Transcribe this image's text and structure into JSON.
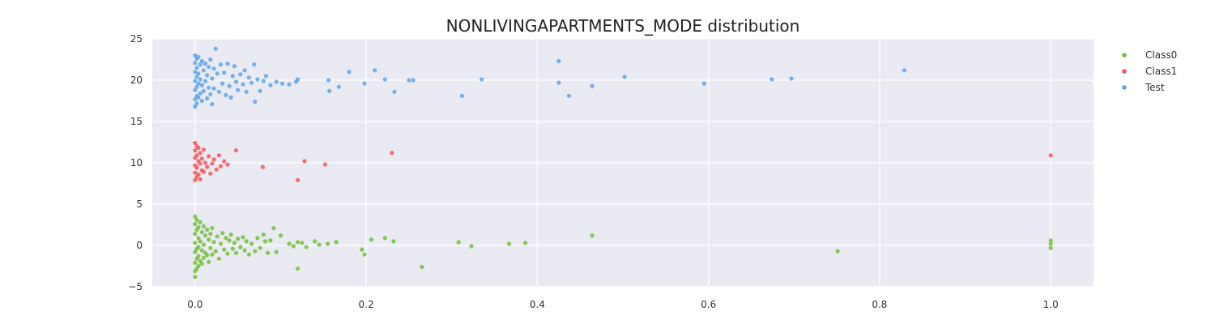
{
  "chart_data": {
    "type": "scatter",
    "title": "NONLIVINGAPARTMENTS_MODE distribution",
    "xlabel": "",
    "ylabel": "",
    "xlim": [
      -0.05,
      1.05
    ],
    "ylim": [
      -5,
      25
    ],
    "x_ticks": [
      0.0,
      0.2,
      0.4,
      0.6,
      0.8,
      1.0
    ],
    "x_tick_labels": [
      "0.0",
      "0.2",
      "0.4",
      "0.6",
      "0.8",
      "1.0"
    ],
    "y_ticks": [
      -5,
      0,
      5,
      10,
      15,
      20,
      25
    ],
    "y_tick_labels": [
      "−5",
      "0",
      "5",
      "10",
      "15",
      "20",
      "25"
    ],
    "grid": true,
    "legend_position": "top-right",
    "background_color": "#eaeaf2",
    "series": [
      {
        "name": "Class0",
        "color": "#73bf3c",
        "points": [
          [
            0.0,
            3.5
          ],
          [
            0.0,
            2.6
          ],
          [
            0.0,
            1.4
          ],
          [
            0.0,
            0.3
          ],
          [
            0.0,
            -0.8
          ],
          [
            0.0,
            -2.1
          ],
          [
            0.0,
            -3.1
          ],
          [
            0.0,
            -3.8
          ],
          [
            0.002,
            3.1
          ],
          [
            0.002,
            1.9
          ],
          [
            0.002,
            -0.4
          ],
          [
            0.002,
            -1.6
          ],
          [
            0.002,
            -2.8
          ],
          [
            0.004,
            2.2
          ],
          [
            0.004,
            0.9
          ],
          [
            0.004,
            -0.2
          ],
          [
            0.004,
            -1.3
          ],
          [
            0.004,
            -2.5
          ],
          [
            0.006,
            2.8
          ],
          [
            0.006,
            0.5
          ],
          [
            0.006,
            -1.9
          ],
          [
            0.008,
            1.6
          ],
          [
            0.008,
            -0.6
          ],
          [
            0.008,
            -2.2
          ],
          [
            0.01,
            2.3
          ],
          [
            0.01,
            0.1
          ],
          [
            0.01,
            -1.5
          ],
          [
            0.012,
            1.2
          ],
          [
            0.012,
            -0.9
          ],
          [
            0.014,
            1.9
          ],
          [
            0.014,
            -1.2
          ],
          [
            0.016,
            0.7
          ],
          [
            0.016,
            -2.0
          ],
          [
            0.018,
            1.4
          ],
          [
            0.018,
            -0.3
          ],
          [
            0.02,
            2.1
          ],
          [
            0.02,
            -1.1
          ],
          [
            0.022,
            0.4
          ],
          [
            0.024,
            -0.7
          ],
          [
            0.026,
            1.1
          ],
          [
            0.028,
            -1.6
          ],
          [
            0.03,
            0.2
          ],
          [
            0.032,
            1.5
          ],
          [
            0.034,
            -0.5
          ],
          [
            0.036,
            0.9
          ],
          [
            0.038,
            -1.0
          ],
          [
            0.04,
            0.6
          ],
          [
            0.042,
            1.3
          ],
          [
            0.044,
            -0.4
          ],
          [
            0.046,
            0.3
          ],
          [
            0.048,
            -0.9
          ],
          [
            0.05,
            0.8
          ],
          [
            0.053,
            -0.2
          ],
          [
            0.056,
            1.0
          ],
          [
            0.058,
            -0.6
          ],
          [
            0.06,
            0.5
          ],
          [
            0.063,
            -1.1
          ],
          [
            0.066,
            0.2
          ],
          [
            0.07,
            -0.7
          ],
          [
            0.073,
            0.9
          ],
          [
            0.076,
            -0.3
          ],
          [
            0.08,
            1.3
          ],
          [
            0.082,
            0.5
          ],
          [
            0.085,
            -0.9
          ],
          [
            0.088,
            0.6
          ],
          [
            0.092,
            2.1
          ],
          [
            0.095,
            -0.8
          ],
          [
            0.1,
            1.2
          ],
          [
            0.11,
            0.2
          ],
          [
            0.115,
            -0.1
          ],
          [
            0.12,
            0.4
          ],
          [
            0.12,
            -2.8
          ],
          [
            0.125,
            0.3
          ],
          [
            0.13,
            -0.2
          ],
          [
            0.14,
            0.5
          ],
          [
            0.145,
            0.1
          ],
          [
            0.155,
            0.2
          ],
          [
            0.165,
            0.4
          ],
          [
            0.195,
            -0.5
          ],
          [
            0.198,
            -1.1
          ],
          [
            0.206,
            0.7
          ],
          [
            0.222,
            0.9
          ],
          [
            0.232,
            0.5
          ],
          [
            0.265,
            -2.6
          ],
          [
            0.308,
            0.4
          ],
          [
            0.323,
            -0.1
          ],
          [
            0.367,
            0.2
          ],
          [
            0.386,
            0.3
          ],
          [
            0.464,
            1.2
          ],
          [
            0.751,
            -0.7
          ],
          [
            1.0,
            0.6
          ],
          [
            1.0,
            0.2
          ],
          [
            1.0,
            -0.3
          ]
        ]
      },
      {
        "name": "Class1",
        "color": "#f4575c",
        "points": [
          [
            0.0,
            12.4
          ],
          [
            0.0,
            11.5
          ],
          [
            0.0,
            10.6
          ],
          [
            0.0,
            9.7
          ],
          [
            0.0,
            8.8
          ],
          [
            0.0,
            7.9
          ],
          [
            0.002,
            12.0
          ],
          [
            0.002,
            10.9
          ],
          [
            0.002,
            9.4
          ],
          [
            0.002,
            8.3
          ],
          [
            0.004,
            11.8
          ],
          [
            0.004,
            10.2
          ],
          [
            0.004,
            8.6
          ],
          [
            0.006,
            11.2
          ],
          [
            0.006,
            9.9
          ],
          [
            0.006,
            8.0
          ],
          [
            0.008,
            10.5
          ],
          [
            0.008,
            9.1
          ],
          [
            0.01,
            11.6
          ],
          [
            0.01,
            8.9
          ],
          [
            0.012,
            10.0
          ],
          [
            0.014,
            9.5
          ],
          [
            0.016,
            10.8
          ],
          [
            0.018,
            8.7
          ],
          [
            0.02,
            9.9
          ],
          [
            0.022,
            10.4
          ],
          [
            0.025,
            9.2
          ],
          [
            0.028,
            10.9
          ],
          [
            0.03,
            9.6
          ],
          [
            0.034,
            10.2
          ],
          [
            0.038,
            9.8
          ],
          [
            0.048,
            11.5
          ],
          [
            0.079,
            9.5
          ],
          [
            0.12,
            7.9
          ],
          [
            0.128,
            10.2
          ],
          [
            0.152,
            9.8
          ],
          [
            0.23,
            11.2
          ],
          [
            1.0,
            10.9
          ]
        ]
      },
      {
        "name": "Test",
        "color": "#5ea4e9",
        "points": [
          [
            0.0,
            23.0
          ],
          [
            0.0,
            22.1
          ],
          [
            0.0,
            21.0
          ],
          [
            0.0,
            19.9
          ],
          [
            0.0,
            18.8
          ],
          [
            0.0,
            17.7
          ],
          [
            0.0,
            16.8
          ],
          [
            0.002,
            22.6
          ],
          [
            0.002,
            21.5
          ],
          [
            0.002,
            20.4
          ],
          [
            0.002,
            19.2
          ],
          [
            0.002,
            18.1
          ],
          [
            0.002,
            17.2
          ],
          [
            0.004,
            22.8
          ],
          [
            0.004,
            20.8
          ],
          [
            0.004,
            19.6
          ],
          [
            0.004,
            17.9
          ],
          [
            0.006,
            21.9
          ],
          [
            0.006,
            20.1
          ],
          [
            0.006,
            18.4
          ],
          [
            0.008,
            22.3
          ],
          [
            0.008,
            19.4
          ],
          [
            0.008,
            17.5
          ],
          [
            0.01,
            21.2
          ],
          [
            0.01,
            18.7
          ],
          [
            0.012,
            22.0
          ],
          [
            0.012,
            19.9
          ],
          [
            0.014,
            20.6
          ],
          [
            0.014,
            17.8
          ],
          [
            0.016,
            21.6
          ],
          [
            0.016,
            19.1
          ],
          [
            0.018,
            22.5
          ],
          [
            0.018,
            18.3
          ],
          [
            0.02,
            20.2
          ],
          [
            0.02,
            17.1
          ],
          [
            0.022,
            21.4
          ],
          [
            0.022,
            19.0
          ],
          [
            0.024,
            23.8
          ],
          [
            0.026,
            20.8
          ],
          [
            0.028,
            18.6
          ],
          [
            0.03,
            21.9
          ],
          [
            0.032,
            19.6
          ],
          [
            0.034,
            20.9
          ],
          [
            0.036,
            18.2
          ],
          [
            0.038,
            22.0
          ],
          [
            0.04,
            19.3
          ],
          [
            0.042,
            17.9
          ],
          [
            0.044,
            20.5
          ],
          [
            0.046,
            21.7
          ],
          [
            0.048,
            19.8
          ],
          [
            0.05,
            18.8
          ],
          [
            0.053,
            20.7
          ],
          [
            0.056,
            19.5
          ],
          [
            0.058,
            21.2
          ],
          [
            0.06,
            18.6
          ],
          [
            0.063,
            20.3
          ],
          [
            0.066,
            19.7
          ],
          [
            0.069,
            21.9
          ],
          [
            0.07,
            17.4
          ],
          [
            0.073,
            20.1
          ],
          [
            0.076,
            18.7
          ],
          [
            0.08,
            19.9
          ],
          [
            0.083,
            20.5
          ],
          [
            0.088,
            19.4
          ],
          [
            0.095,
            19.8
          ],
          [
            0.102,
            19.6
          ],
          [
            0.11,
            19.5
          ],
          [
            0.118,
            19.8
          ],
          [
            0.12,
            20.1
          ],
          [
            0.156,
            20.0
          ],
          [
            0.157,
            18.7
          ],
          [
            0.168,
            19.2
          ],
          [
            0.18,
            21.0
          ],
          [
            0.198,
            19.6
          ],
          [
            0.21,
            21.2
          ],
          [
            0.222,
            20.1
          ],
          [
            0.233,
            18.6
          ],
          [
            0.25,
            20.0
          ],
          [
            0.255,
            20.0
          ],
          [
            0.312,
            18.1
          ],
          [
            0.335,
            20.1
          ],
          [
            0.425,
            22.3
          ],
          [
            0.425,
            19.7
          ],
          [
            0.437,
            18.1
          ],
          [
            0.464,
            19.3
          ],
          [
            0.502,
            20.4
          ],
          [
            0.595,
            19.6
          ],
          [
            0.674,
            20.1
          ],
          [
            0.697,
            20.2
          ],
          [
            0.829,
            21.2
          ]
        ]
      }
    ]
  }
}
